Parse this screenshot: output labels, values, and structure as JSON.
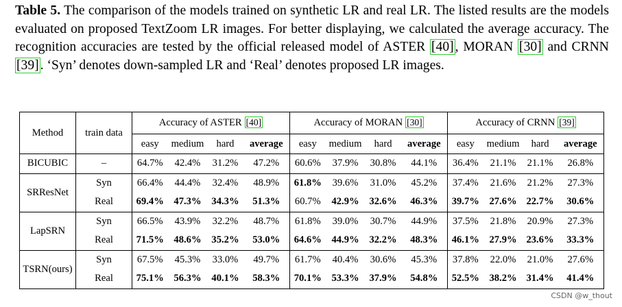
{
  "caption": {
    "label": "Table 5.",
    "text_1": "The comparison of the models trained on synthetic LR and real LR. The listed results are the models evaluated on proposed TextZoom LR images. For better displaying, we calculated the average accuracy. The recognition accuracies are tested by the official released model of ASTER",
    "cite_1": "[40]",
    "text_2": ", MORAN",
    "cite_2": "[30]",
    "text_3": "and CRNN",
    "cite_3": "[39]",
    "text_4": ". ‘Syn’ denotes down-sampled LR and ‘Real’ denotes proposed LR images."
  },
  "table": {
    "header": {
      "method": "Method",
      "train": "train data",
      "metric_groups": [
        {
          "prefix": "Accuracy of ASTER",
          "cite": "[40]"
        },
        {
          "prefix": "Accuracy of MORAN",
          "cite": "[30]"
        },
        {
          "prefix": "Accuracy of CRNN",
          "cite": "[39]"
        }
      ],
      "sub_columns": [
        "easy",
        "medium",
        "hard",
        "average"
      ]
    },
    "groups": [
      {
        "method": "BICUBIC",
        "rows": [
          {
            "train": "–",
            "values": [
              "64.7%",
              "42.4%",
              "31.2%",
              "47.2%",
              "60.6%",
              "37.9%",
              "30.8%",
              "44.1%",
              "36.4%",
              "21.1%",
              "21.1%",
              "26.8%"
            ]
          }
        ]
      },
      {
        "method": "SRResNet",
        "rows": [
          {
            "train": "Syn",
            "values": [
              "66.4%",
              "44.4%",
              "32.4%",
              "48.9%",
              "61.8%",
              "39.6%",
              "31.0%",
              "45.2%",
              "37.4%",
              "21.6%",
              "21.2%",
              "27.3%"
            ]
          },
          {
            "train": "Real",
            "values": [
              "69.4%",
              "47.3%",
              "34.3%",
              "51.3%",
              "60.7%",
              "42.9%",
              "32.6%",
              "46.3%",
              "39.7%",
              "27.6%",
              "22.7%",
              "30.6%"
            ]
          }
        ]
      },
      {
        "method": "LapSRN",
        "rows": [
          {
            "train": "Syn",
            "values": [
              "66.5%",
              "43.9%",
              "32.2%",
              "48.7%",
              "61.8%",
              "39.0%",
              "30.7%",
              "44.9%",
              "37.5%",
              "21.8%",
              "20.9%",
              "27.3%"
            ]
          },
          {
            "train": "Real",
            "values": [
              "71.5%",
              "48.6%",
              "35.2%",
              "53.0%",
              "64.6%",
              "44.9%",
              "32.2%",
              "48.3%",
              "46.1%",
              "27.9%",
              "23.6%",
              "33.3%"
            ]
          }
        ]
      },
      {
        "method": "TSRN(ours)",
        "rows": [
          {
            "train": "Syn",
            "values": [
              "67.5%",
              "45.3%",
              "33.0%",
              "49.7%",
              "61.7%",
              "40.4%",
              "30.6%",
              "45.3%",
              "37.8%",
              "22.0%",
              "21.0%",
              "27.6%"
            ]
          },
          {
            "train": "Real",
            "values": [
              "75.1%",
              "56.3%",
              "40.1%",
              "58.3%",
              "70.1%",
              "53.3%",
              "37.9%",
              "54.8%",
              "52.5%",
              "38.2%",
              "31.4%",
              "41.4%"
            ]
          }
        ]
      }
    ]
  },
  "watermark": "CSDN @w_thout"
}
